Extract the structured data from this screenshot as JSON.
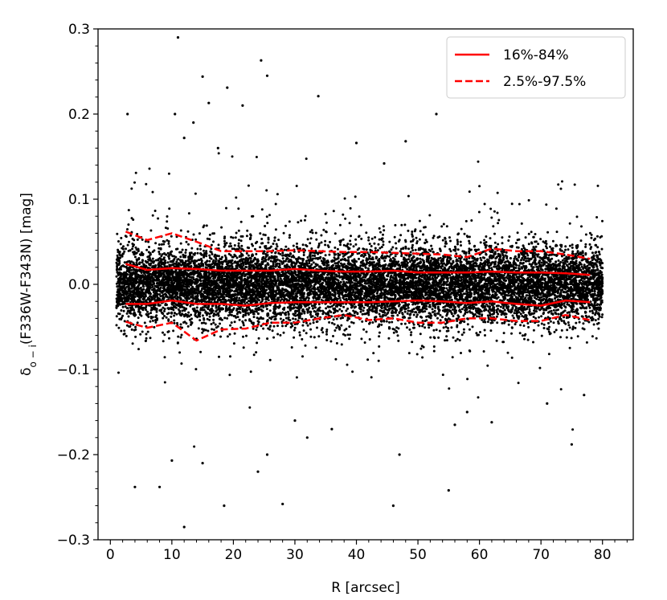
{
  "chart_data": {
    "type": "scatter",
    "title": "",
    "xlabel": "R [arcsec]",
    "ylabel_main": "δ",
    "ylabel_sub": "o − i",
    "ylabel_rest": "(F336W-F343N) [mag]",
    "xlim": [
      -2,
      85
    ],
    "ylim": [
      -0.3,
      0.3
    ],
    "x_ticks": [
      0,
      10,
      20,
      30,
      40,
      50,
      60,
      70,
      80
    ],
    "x_tick_labels": [
      "0",
      "10",
      "20",
      "30",
      "40",
      "50",
      "60",
      "70",
      "80"
    ],
    "y_ticks": [
      -0.3,
      -0.2,
      -0.1,
      0.0,
      0.1,
      0.2,
      0.3
    ],
    "y_tick_labels": [
      "−0.3",
      "−0.2",
      "−0.1",
      "0.0",
      "0.1",
      "0.2",
      "0.3"
    ],
    "grid": false,
    "legend_position": "top-right",
    "colors": {
      "points": "#000000",
      "percentile_lines": "#ff0000"
    },
    "series": [
      {
        "name": "16%-84%",
        "style": "solid",
        "upper": {
          "x": [
            2.5,
            6,
            10,
            14,
            18,
            22,
            26,
            30,
            34,
            38,
            42,
            46,
            50,
            54,
            58,
            62,
            66,
            70,
            74,
            78
          ],
          "y": [
            0.024,
            0.017,
            0.019,
            0.018,
            0.016,
            0.016,
            0.016,
            0.018,
            0.016,
            0.015,
            0.015,
            0.016,
            0.014,
            0.014,
            0.014,
            0.015,
            0.014,
            0.014,
            0.013,
            0.011
          ]
        },
        "lower": {
          "x": [
            2.5,
            6,
            10,
            14,
            18,
            22,
            26,
            30,
            34,
            38,
            42,
            46,
            50,
            54,
            58,
            62,
            66,
            70,
            74,
            78
          ],
          "y": [
            -0.023,
            -0.023,
            -0.019,
            -0.023,
            -0.023,
            -0.025,
            -0.022,
            -0.021,
            -0.021,
            -0.021,
            -0.021,
            -0.02,
            -0.019,
            -0.02,
            -0.022,
            -0.02,
            -0.023,
            -0.025,
            -0.019,
            -0.021
          ]
        }
      },
      {
        "name": "2.5%-97.5%",
        "style": "dashed",
        "upper": {
          "x": [
            2.5,
            6,
            10,
            14,
            18,
            22,
            26,
            30,
            34,
            38,
            42,
            46,
            50,
            54,
            58,
            62,
            66,
            70,
            74,
            78
          ],
          "y": [
            0.062,
            0.052,
            0.06,
            0.05,
            0.039,
            0.039,
            0.039,
            0.04,
            0.039,
            0.038,
            0.038,
            0.037,
            0.036,
            0.035,
            0.032,
            0.042,
            0.039,
            0.039,
            0.035,
            0.03
          ]
        },
        "lower": {
          "x": [
            2.5,
            6,
            10,
            14,
            18,
            22,
            26,
            30,
            34,
            38,
            42,
            46,
            50,
            54,
            58,
            62,
            66,
            70,
            74,
            78
          ],
          "y": [
            -0.044,
            -0.051,
            -0.045,
            -0.066,
            -0.053,
            -0.052,
            -0.045,
            -0.045,
            -0.04,
            -0.036,
            -0.042,
            -0.04,
            -0.045,
            -0.045,
            -0.04,
            -0.04,
            -0.043,
            -0.043,
            -0.036,
            -0.042
          ]
        }
      }
    ],
    "scatter_core": {
      "description_x_range": [
        1,
        80
      ],
      "dense_sigma_mag": 0.022,
      "approx_points": 12000
    },
    "outliers": {
      "x": [
        11,
        15,
        19,
        24.5,
        25.5,
        33.8,
        13.5,
        10.5,
        2.8,
        16,
        12,
        17.5,
        21.5,
        53,
        48,
        40,
        44.5,
        12,
        18.5,
        28,
        4,
        8,
        10,
        46,
        55,
        75,
        62,
        56,
        47,
        36,
        25.5,
        24,
        32,
        15,
        30,
        58,
        71,
        77
      ],
      "y": [
        0.29,
        0.244,
        0.231,
        0.263,
        0.245,
        0.221,
        0.19,
        0.2,
        0.2,
        0.213,
        0.172,
        0.16,
        0.21,
        0.2,
        0.168,
        0.166,
        0.142,
        -0.285,
        -0.26,
        -0.258,
        -0.238,
        -0.238,
        -0.207,
        -0.26,
        -0.242,
        -0.188,
        -0.162,
        -0.165,
        -0.2,
        -0.17,
        -0.2,
        -0.22,
        -0.18,
        -0.21,
        -0.16,
        -0.15,
        -0.14,
        -0.13
      ]
    },
    "legend_entries": [
      {
        "label": "16%-84%",
        "style": "solid"
      },
      {
        "label": "2.5%-97.5%",
        "style": "dashed"
      }
    ]
  }
}
